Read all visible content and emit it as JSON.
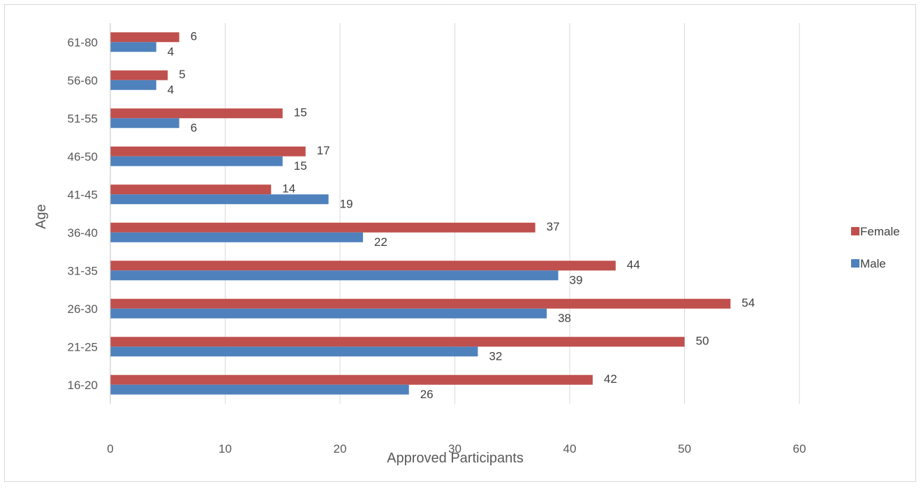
{
  "chart_data": {
    "type": "bar",
    "orientation": "horizontal",
    "title": "",
    "xlabel": "Approved Participants",
    "ylabel": "Age",
    "categories": [
      "16-20",
      "21-25",
      "26-30",
      "31-35",
      "36-40",
      "41-45",
      "46-50",
      "51-55",
      "56-60",
      "61-80"
    ],
    "series": [
      {
        "name": "Male",
        "color": "#4f81bd",
        "values": [
          26,
          32,
          38,
          39,
          22,
          19,
          15,
          6,
          4,
          4
        ]
      },
      {
        "name": "Female",
        "color": "#c0504d",
        "values": [
          42,
          50,
          54,
          44,
          37,
          14,
          17,
          15,
          5,
          6
        ]
      }
    ],
    "xlim": [
      0,
      70
    ],
    "xticks": [
      0,
      10,
      20,
      30,
      40,
      50,
      60
    ],
    "grid": "vertical",
    "data_labels": true,
    "legend": {
      "position": "right",
      "order": [
        "Female",
        "Male"
      ]
    }
  }
}
